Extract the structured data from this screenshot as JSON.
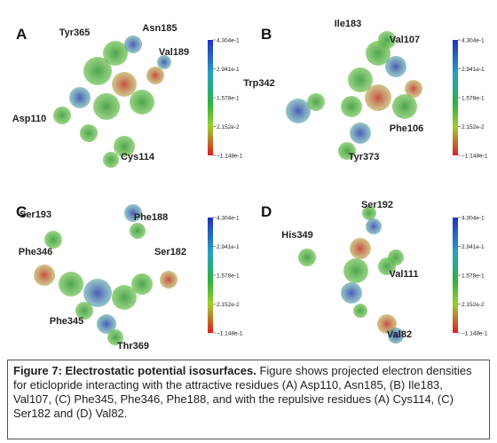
{
  "panels": [
    {
      "label": "A",
      "residues": [
        "Tyr365",
        "Asn185",
        "Val189",
        "Asp110",
        "Cys114"
      ]
    },
    {
      "label": "B",
      "residues": [
        "Ile183",
        "Val107",
        "Trp342",
        "Phe106",
        "Tyr373"
      ]
    },
    {
      "label": "C",
      "residues": [
        "Ser193",
        "Phe188",
        "Ser182",
        "Phe346",
        "Phe345",
        "Thr369"
      ]
    },
    {
      "label": "D",
      "residues": [
        "Ser192",
        "His349",
        "Val111",
        "Val82"
      ]
    }
  ],
  "colorbar_ticks": [
    "4.304e-1",
    "2.941e-1",
    "1.578e-1",
    "2.152e-2",
    "−1.148e-1"
  ],
  "caption": {
    "title": "Figure 7: Electrostatic potential isosurfaces.",
    "text": "Figure shows projected electron densities for eticlopride interacting with the attractive residues (A) Asp110, Asn185, (B) Ile183, Val107, (C) Phe345, Phe346, Phe188, and with the repulsive residues (A) Cys114, (C) Ser182 and (D) Val82."
  }
}
